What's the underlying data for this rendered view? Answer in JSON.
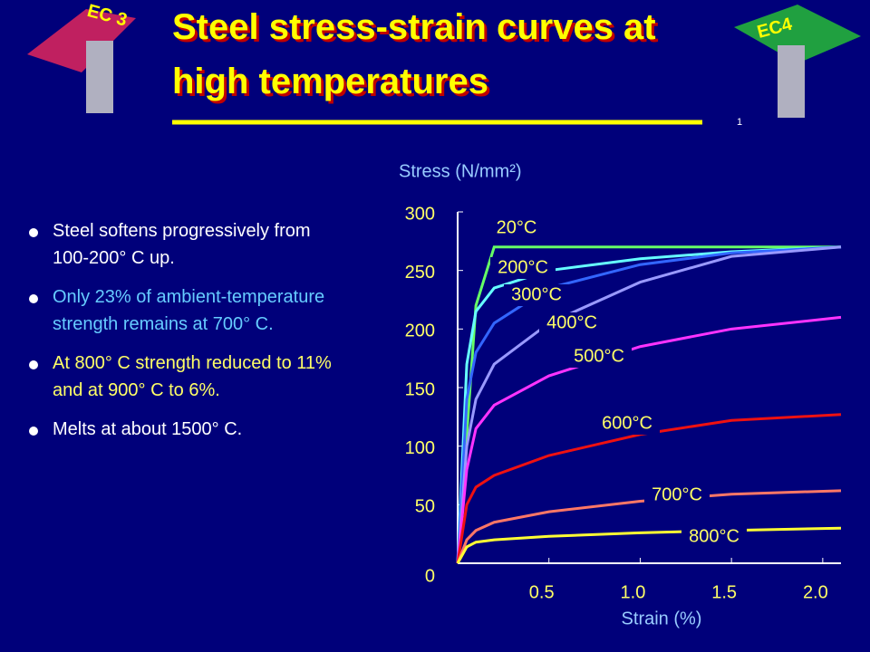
{
  "logos": [
    "EC 3",
    "EC4"
  ],
  "title_lines": [
    "Steel stress-strain curves at",
    "high temperatures"
  ],
  "page_number": "1",
  "bullets": [
    {
      "text": "Steel softens progressively from 100-200° C up.",
      "color": "#ffffff"
    },
    {
      "text": "Only 23% of ambient-temperature strength remains at 700° C.",
      "color": "#66ccff"
    },
    {
      "text": "At 800° C strength reduced to 11% and at 900° C to 6%.",
      "color": "#ffff66"
    },
    {
      "text": "Melts at about 1500° C.",
      "color": "#ffffff"
    }
  ],
  "chart_data": {
    "type": "line",
    "y_label": "Stress (N/mm²)",
    "x_label": "Strain (%)",
    "x": [
      0,
      0.05,
      0.1,
      0.2,
      0.5,
      1.0,
      1.5,
      2.1
    ],
    "xlim": [
      0,
      2.1
    ],
    "ylim": [
      0,
      300
    ],
    "xticks": [
      0.5,
      {
        "value": 1,
        "label": "1.0"
      },
      1.5,
      {
        "value": 2,
        "label": "2.0"
      }
    ],
    "yticks": [
      0,
      50,
      100,
      150,
      200,
      250,
      300
    ],
    "series": [
      {
        "name": "20°C",
        "color": "#66ff66",
        "values": [
          0,
          110,
          220,
          270,
          270,
          270,
          270,
          270
        ]
      },
      {
        "name": "200°C",
        "color": "#66ffff",
        "values": [
          0,
          170,
          215,
          235,
          250,
          260,
          266,
          270
        ]
      },
      {
        "name": "300°C",
        "color": "#3366ff",
        "values": [
          0,
          140,
          180,
          205,
          235,
          255,
          265,
          270
        ]
      },
      {
        "name": "400°C",
        "color": "#9999ff",
        "values": [
          0,
          100,
          140,
          170,
          205,
          240,
          262,
          270
        ]
      },
      {
        "name": "500°C",
        "color": "#ff33ff",
        "values": [
          0,
          80,
          115,
          135,
          160,
          185,
          200,
          210
        ]
      },
      {
        "name": "600°C",
        "color": "#ee1111",
        "values": [
          0,
          50,
          65,
          75,
          92,
          110,
          122,
          127
        ]
      },
      {
        "name": "700°C",
        "color": "#ff7766",
        "values": [
          0,
          20,
          28,
          35,
          44,
          53,
          59,
          62
        ]
      },
      {
        "name": "800°C",
        "color": "#ffff33",
        "values": [
          0,
          14,
          18,
          20,
          23,
          26,
          28,
          30
        ]
      }
    ]
  }
}
